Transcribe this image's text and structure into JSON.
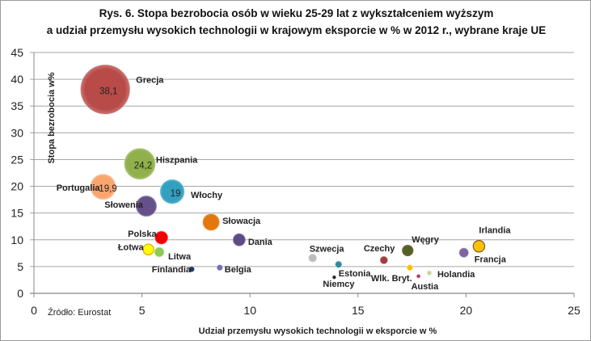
{
  "title_line1": "Rys. 6. Stopa bezrobocia osób w wieku 25-29 lat z wykształceniem wyższym",
  "title_line2": "a udział przemysłu wysokich technologii w krajowym eksporcie w % w 2012 r., wybrane kraje UE",
  "source": "Źródło: Eurostat",
  "chart_data": {
    "type": "bubble",
    "title": "Rys. 6. Stopa bezrobocia osób w wieku 25-29 lat z wykształceniem wyższym a udział przemysłu wysokich technologii w krajowym eksporcie w % w 2012 r., wybrane kraje UE",
    "xlabel": "Udział przemysłu wysokich technologii w eksporcie w %",
    "ylabel": "Stopa bezrobocia w%",
    "xlim": [
      0,
      25
    ],
    "ylim": [
      0,
      45
    ],
    "xticks": [
      "0",
      "5",
      "10",
      "15",
      "20",
      "25"
    ],
    "yticks": [
      "0",
      "5",
      "10",
      "15",
      "20",
      "25",
      "30",
      "35",
      "40",
      "45"
    ],
    "grid": "horizontal",
    "legend": "none",
    "points": [
      {
        "name": "Grecja",
        "x": 3.3,
        "y": 38.1,
        "size": 38.1,
        "data_label": "38,1",
        "color": "#b84a47"
      },
      {
        "name": "Hiszpania",
        "x": 4.9,
        "y": 24.2,
        "size": 24.2,
        "data_label": "24,2",
        "color": "#8fb04a"
      },
      {
        "name": "Portugalia",
        "x": 3.2,
        "y": 19.9,
        "size": 19.9,
        "data_label": "19,9",
        "color": "#f9a56e"
      },
      {
        "name": "Włochy",
        "x": 6.4,
        "y": 19.0,
        "size": 19.0,
        "data_label": "19",
        "color": "#33a0c0"
      },
      {
        "name": "Słowenia",
        "x": 5.2,
        "y": 16.3,
        "size": 16.3,
        "color": "#65508a"
      },
      {
        "name": "Słowacja",
        "x": 8.2,
        "y": 13.3,
        "size": 13.3,
        "color": "#e2760f"
      },
      {
        "name": "Polska",
        "x": 5.9,
        "y": 10.4,
        "size": 10.4,
        "color": "#f00000"
      },
      {
        "name": "Dania",
        "x": 9.5,
        "y": 10.0,
        "size": 10.0,
        "color": "#5d4b86"
      },
      {
        "name": "Łotwa",
        "x": 5.3,
        "y": 8.2,
        "size": 8.2,
        "color": "#ffff00"
      },
      {
        "name": "Litwa",
        "x": 5.8,
        "y": 7.7,
        "size": 7.7,
        "color": "#8ccc52"
      },
      {
        "name": "Finlandia",
        "x": 7.3,
        "y": 4.5,
        "size": 4.5,
        "color": "#1f3864"
      },
      {
        "name": "Belgia",
        "x": 8.6,
        "y": 4.8,
        "size": 4.8,
        "color": "#7070b0"
      },
      {
        "name": "Szwecja",
        "x": 12.9,
        "y": 6.6,
        "size": 6.6,
        "color": "#bdbdbd"
      },
      {
        "name": "Estonia",
        "x": 14.1,
        "y": 5.4,
        "size": 5.4,
        "color": "#2f8aa0"
      },
      {
        "name": "Niemcy",
        "x": 13.9,
        "y": 3.0,
        "size": 3.0,
        "color": "#222222"
      },
      {
        "name": "Czechy",
        "x": 16.2,
        "y": 6.2,
        "size": 6.2,
        "color": "#a83a3a"
      },
      {
        "name": "Węgry",
        "x": 17.3,
        "y": 8.0,
        "size": 8.0,
        "color": "#4f6228"
      },
      {
        "name": "Wlk. Bryt.",
        "x": 17.4,
        "y": 4.8,
        "size": 4.8,
        "color": "#ffc000"
      },
      {
        "name": "Austia",
        "x": 17.8,
        "y": 3.2,
        "size": 3.2,
        "color": "#c0306a"
      },
      {
        "name": "Holandia",
        "x": 18.3,
        "y": 3.8,
        "size": 3.8,
        "color": "#c4d79b"
      },
      {
        "name": "Francja",
        "x": 19.9,
        "y": 7.6,
        "size": 7.6,
        "color": "#8064a2"
      },
      {
        "name": "Irlandia",
        "x": 20.6,
        "y": 8.8,
        "size": 8.8,
        "color": "#ffc000"
      }
    ]
  }
}
